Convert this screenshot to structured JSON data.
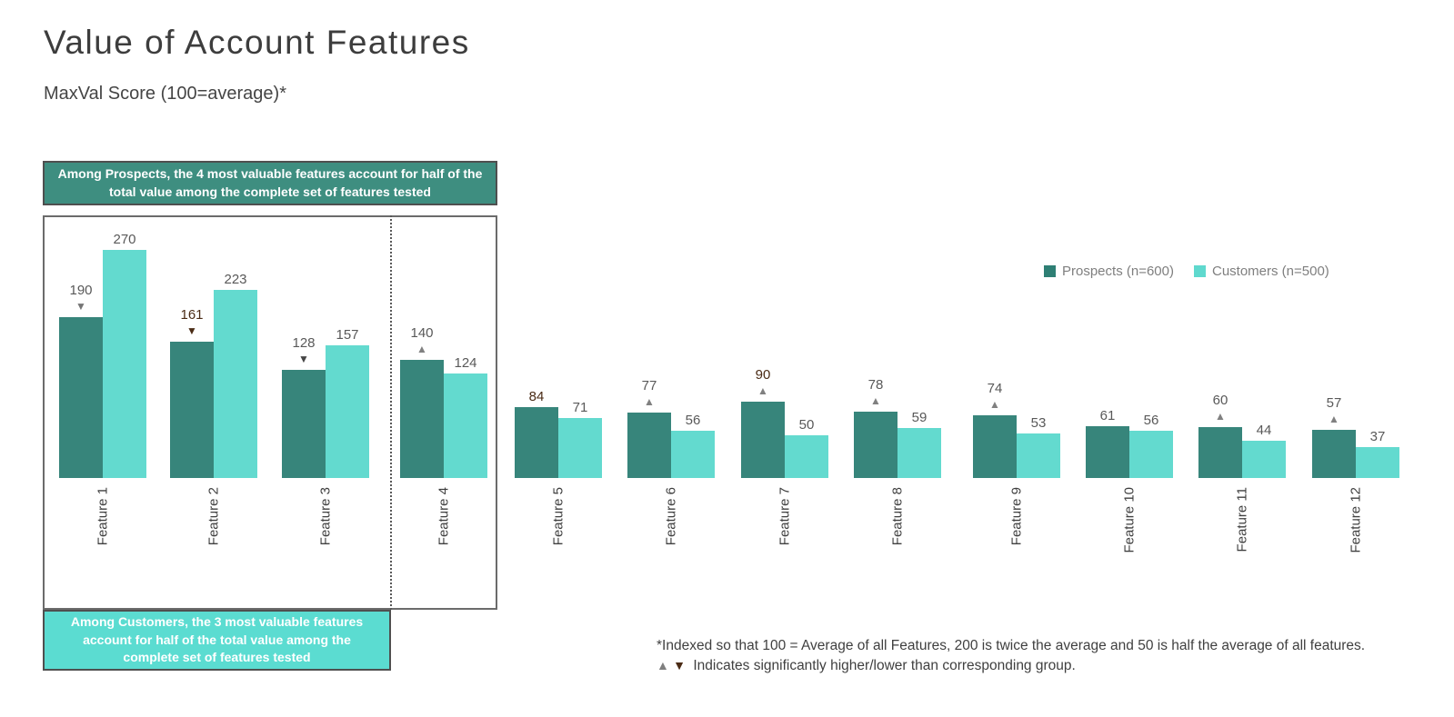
{
  "page": {
    "title": "Value of Account Features",
    "subtitle": "MaxVal Score (100=average)*"
  },
  "legend": {
    "items": [
      {
        "label": "Prospects (n=600)",
        "color": "#2e7f74"
      },
      {
        "label": "Customers (n=500)",
        "color": "#5fd9ce"
      }
    ]
  },
  "callouts": {
    "prospects_box": {
      "text": "Among Prospects, the 4 most valuable features account for half of the total value among the complete set of features tested",
      "bg": "#3e8e80"
    },
    "customers_box": {
      "text": "Among Customers, the 3 most valuable features account for half of the total value among the complete set of features tested",
      "bg": "#5bdcd1"
    }
  },
  "footnote": {
    "line1": "*Indexed so that 100 = Average of all Features, 200 is twice the average and 50 is half the average of all features.",
    "up_symbol": "▲",
    "down_symbol": "▼",
    "line2": "Indicates significantly higher/lower than corresponding group."
  },
  "chart_data": {
    "type": "bar",
    "title": "Value of Account Features",
    "subtitle": "MaxVal Score (100=average)*",
    "categories": [
      "Feature 1",
      "Feature 2",
      "Feature 3",
      "Feature 4",
      "Feature 5",
      "Feature 6",
      "Feature 7",
      "Feature 8",
      "Feature 9",
      "Feature 10",
      "Feature 11",
      "Feature 12"
    ],
    "series": [
      {
        "name": "Prospects (n=600)",
        "color": "#37857b",
        "values": [
          190,
          161,
          128,
          140,
          84,
          77,
          90,
          78,
          74,
          61,
          60,
          57
        ],
        "significance": [
          "lower",
          "lower",
          "lower",
          "higher",
          null,
          "higher",
          "higher",
          "higher",
          "higher",
          null,
          "higher",
          "higher"
        ],
        "marker_colors": [
          "#757575",
          "#4a2b15",
          "#454545",
          "#808080",
          null,
          "#808080",
          "#808080",
          "#808080",
          "#808080",
          null,
          "#808080",
          "#808080"
        ],
        "label_colors": [
          "#595959",
          "#4a2b15",
          "#595959",
          "#595959",
          "#4a2b15",
          "#595959",
          "#4a2b15",
          "#595959",
          "#595959",
          "#595959",
          "#595959",
          "#595959"
        ]
      },
      {
        "name": "Customers (n=500)",
        "color": "#63dacf",
        "values": [
          270,
          223,
          157,
          124,
          71,
          56,
          50,
          59,
          53,
          56,
          44,
          37
        ],
        "significance": [
          null,
          null,
          null,
          null,
          null,
          null,
          null,
          null,
          null,
          null,
          null,
          null
        ],
        "marker_colors": [
          null,
          null,
          null,
          null,
          null,
          null,
          null,
          null,
          null,
          null,
          null,
          null
        ],
        "label_colors": [
          "#595959",
          "#595959",
          "#595959",
          "#595959",
          "#595959",
          "#595959",
          "#595959",
          "#595959",
          "#595959",
          "#595959",
          "#595959",
          "#595959"
        ]
      }
    ],
    "marker_symbols": {
      "higher": "▲",
      "lower": "▼"
    },
    "ylim": [
      0,
      290
    ],
    "axes": "hidden; value labels above bars; category labels rotated 90",
    "legend_position": "right-center",
    "grid": false,
    "grouped_annotation": "Features 1-4 enclosed in box; dotted line after Feature 3"
  }
}
